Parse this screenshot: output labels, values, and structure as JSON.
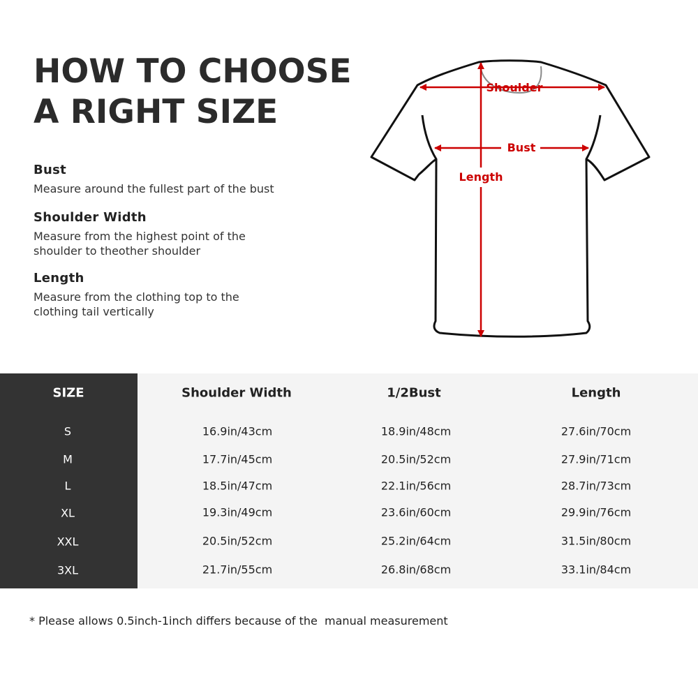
{
  "heading": {
    "line1": "HOW TO CHOOSE",
    "line2": "A RIGHT SIZE"
  },
  "sections": [
    {
      "title": "Bust",
      "text": "Measure around the fullest part of the bust"
    },
    {
      "title": "Shoulder Width",
      "text": "Measure from the highest point of the shoulder to theother shoulder"
    },
    {
      "title": "Length",
      "text": "Measure from the clothing top to the clothing tail vertically"
    }
  ],
  "diagram": {
    "shoulder": "Shoulder",
    "bust": "Bust",
    "length": "Length",
    "accent_color": "#cc0000"
  },
  "table": {
    "headers": [
      "SIZE",
      "Shoulder Width",
      "1/2Bust",
      "Length"
    ],
    "rows": [
      [
        "S",
        "16.9in/43cm",
        "18.9in/48cm",
        "27.6in/70cm"
      ],
      [
        "M",
        "17.7in/45cm",
        "20.5in/52cm",
        "27.9in/71cm"
      ],
      [
        "L",
        "18.5in/47cm",
        "22.1in/56cm",
        "28.7in/73cm"
      ],
      [
        "XL",
        "19.3in/49cm",
        "23.6in/60cm",
        "29.9in/76cm"
      ],
      [
        "XXL",
        "20.5in/52cm",
        "25.2in/64cm",
        "31.5in/80cm"
      ],
      [
        "3XL",
        "21.7in/55cm",
        "26.8in/68cm",
        "33.1in/84cm"
      ]
    ],
    "size_column_color": "#333333",
    "background_color": "#f4f4f4"
  },
  "note": "* Please allows 0.5inch-1inch differs because of the  manual measurement"
}
